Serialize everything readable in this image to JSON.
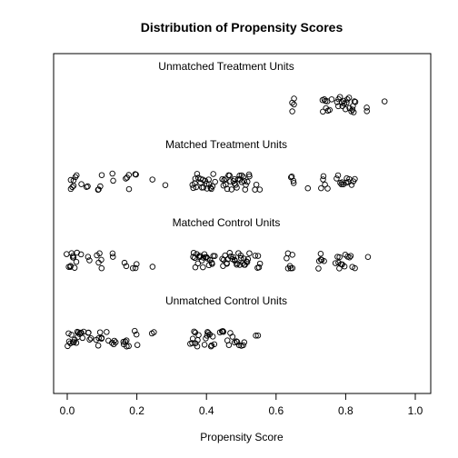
{
  "chart_data": {
    "type": "scatter",
    "title": "Distribution of Propensity Scores",
    "xlabel": "Propensity Score",
    "ylabel": "",
    "xlim": [
      0.0,
      1.0
    ],
    "xticks": [
      "0.0",
      "0.2",
      "0.4",
      "0.6",
      "0.8",
      "1.0"
    ],
    "xtick_values": [
      0.0,
      0.2,
      0.4,
      0.6,
      0.8,
      1.0
    ],
    "grid": false,
    "series": [
      {
        "name": "Unmatched Treatment Units",
        "x": [
          0.645,
          0.648,
          0.65,
          0.652,
          0.733,
          0.736,
          0.739,
          0.742,
          0.745,
          0.748,
          0.751,
          0.755,
          0.76,
          0.775,
          0.778,
          0.781,
          0.784,
          0.787,
          0.79,
          0.793,
          0.796,
          0.8,
          0.803,
          0.806,
          0.809,
          0.812,
          0.815,
          0.818,
          0.82,
          0.823,
          0.826,
          0.829,
          0.86,
          0.862,
          0.91
        ]
      },
      {
        "name": "Matched Treatment Units",
        "x": [
          0.01,
          0.012,
          0.015,
          0.018,
          0.02,
          0.022,
          0.025,
          0.04,
          0.055,
          0.06,
          0.09,
          0.092,
          0.095,
          0.098,
          0.13,
          0.133,
          0.17,
          0.173,
          0.176,
          0.179,
          0.195,
          0.198,
          0.245,
          0.28,
          0.36,
          0.363,
          0.366,
          0.369,
          0.372,
          0.375,
          0.378,
          0.381,
          0.384,
          0.387,
          0.39,
          0.393,
          0.396,
          0.399,
          0.402,
          0.405,
          0.408,
          0.411,
          0.414,
          0.417,
          0.42,
          0.423,
          0.445,
          0.448,
          0.451,
          0.454,
          0.457,
          0.46,
          0.463,
          0.466,
          0.47,
          0.473,
          0.476,
          0.479,
          0.482,
          0.485,
          0.488,
          0.491,
          0.494,
          0.497,
          0.5,
          0.503,
          0.506,
          0.509,
          0.512,
          0.515,
          0.518,
          0.521,
          0.524,
          0.54,
          0.545,
          0.552,
          0.643,
          0.646,
          0.649,
          0.652,
          0.69,
          0.73,
          0.734,
          0.738,
          0.742,
          0.748,
          0.775,
          0.779,
          0.783,
          0.787,
          0.791,
          0.795,
          0.8,
          0.804,
          0.808,
          0.812,
          0.816,
          0.822,
          0.826
        ]
      },
      {
        "name": "Matched Control Units",
        "x": [
          0.0,
          0.005,
          0.008,
          0.01,
          0.013,
          0.015,
          0.018,
          0.02,
          0.022,
          0.025,
          0.028,
          0.04,
          0.06,
          0.065,
          0.085,
          0.09,
          0.093,
          0.096,
          0.099,
          0.13,
          0.133,
          0.165,
          0.168,
          0.19,
          0.195,
          0.198,
          0.245,
          0.36,
          0.363,
          0.366,
          0.369,
          0.372,
          0.375,
          0.378,
          0.381,
          0.384,
          0.387,
          0.39,
          0.393,
          0.396,
          0.399,
          0.402,
          0.405,
          0.408,
          0.411,
          0.414,
          0.417,
          0.42,
          0.423,
          0.445,
          0.448,
          0.451,
          0.454,
          0.457,
          0.46,
          0.463,
          0.466,
          0.47,
          0.473,
          0.476,
          0.479,
          0.482,
          0.485,
          0.488,
          0.491,
          0.494,
          0.497,
          0.5,
          0.503,
          0.506,
          0.509,
          0.512,
          0.515,
          0.518,
          0.521,
          0.524,
          0.54,
          0.545,
          0.548,
          0.552,
          0.555,
          0.63,
          0.633,
          0.636,
          0.639,
          0.642,
          0.645,
          0.648,
          0.72,
          0.725,
          0.728,
          0.73,
          0.733,
          0.736,
          0.77,
          0.775,
          0.778,
          0.781,
          0.784,
          0.787,
          0.79,
          0.795,
          0.8,
          0.805,
          0.81,
          0.815,
          0.82,
          0.825,
          0.865
        ]
      },
      {
        "name": "Unmatched Control Units",
        "x": [
          0.0,
          0.003,
          0.006,
          0.009,
          0.012,
          0.015,
          0.018,
          0.021,
          0.024,
          0.027,
          0.03,
          0.033,
          0.036,
          0.039,
          0.042,
          0.045,
          0.048,
          0.06,
          0.063,
          0.066,
          0.069,
          0.085,
          0.088,
          0.091,
          0.094,
          0.097,
          0.1,
          0.115,
          0.118,
          0.13,
          0.133,
          0.136,
          0.139,
          0.16,
          0.163,
          0.166,
          0.169,
          0.172,
          0.175,
          0.195,
          0.198,
          0.201,
          0.245,
          0.248,
          0.355,
          0.358,
          0.361,
          0.364,
          0.367,
          0.37,
          0.373,
          0.376,
          0.379,
          0.395,
          0.398,
          0.401,
          0.404,
          0.407,
          0.41,
          0.413,
          0.416,
          0.419,
          0.422,
          0.44,
          0.443,
          0.446,
          0.449,
          0.46,
          0.465,
          0.47,
          0.475,
          0.48,
          0.485,
          0.49,
          0.495,
          0.5,
          0.505,
          0.51,
          0.54,
          0.548
        ]
      }
    ]
  }
}
